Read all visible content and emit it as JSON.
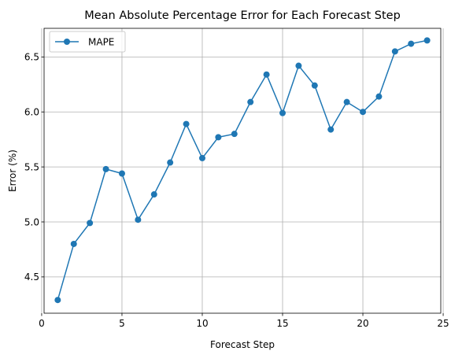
{
  "chart_data": {
    "type": "line",
    "title": "Mean Absolute Percentage Error for Each Forecast Step",
    "xlabel": "Forecast Step",
    "ylabel": "Error (%)",
    "xlim": [
      0.15,
      24.85
    ],
    "ylim": [
      4.17,
      6.76
    ],
    "xticks": [
      0,
      5,
      10,
      15,
      20,
      25
    ],
    "xtick_labels": [
      "0",
      "5",
      "10",
      "15",
      "20",
      "25"
    ],
    "yticks": [
      4.5,
      5.0,
      5.5,
      6.0,
      6.5
    ],
    "ytick_labels": [
      "4.5",
      "5.0",
      "5.5",
      "6.0",
      "6.5"
    ],
    "grid": true,
    "legend_position": "upper-left",
    "series": [
      {
        "name": "MAPE",
        "color": "#1f77b4",
        "marker": "circle",
        "x": [
          1,
          2,
          3,
          4,
          5,
          6,
          7,
          8,
          9,
          10,
          11,
          12,
          13,
          14,
          15,
          16,
          17,
          18,
          19,
          20,
          21,
          22,
          23,
          24
        ],
        "y": [
          4.29,
          4.8,
          4.99,
          5.48,
          5.44,
          5.02,
          5.25,
          5.54,
          5.89,
          5.58,
          5.77,
          5.8,
          6.09,
          6.34,
          5.99,
          6.42,
          6.24,
          5.84,
          6.09,
          6.0,
          6.14,
          6.55,
          6.62,
          6.65
        ]
      }
    ]
  }
}
